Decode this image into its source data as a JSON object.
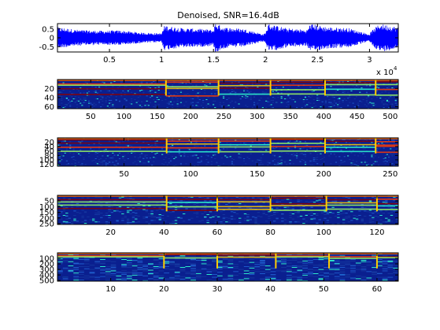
{
  "colors": {
    "background": "#ffffff",
    "axis": "#000000",
    "waveform": "#0000ff",
    "spectrogram_low": "#0a1f8f",
    "spectrogram_mid": "#30ffd0",
    "spectrogram_high": "#ffcc00",
    "spectrogram_peak": "#8b0000"
  },
  "chart_data": [
    {
      "type": "line",
      "title": "Denoised, SNR=16.4dB",
      "xlabel": "",
      "ylabel": "",
      "x_exponent_label": "x 10",
      "x_exponent_power": "4",
      "xlim": [
        0,
        32768
      ],
      "ylim": [
        -0.8,
        0.8
      ],
      "x_ticks": [
        5000,
        10000,
        15000,
        20000,
        25000,
        30000
      ],
      "x_tick_labels": [
        "0.5",
        "1",
        "1.5",
        "2",
        "2.5",
        "3"
      ],
      "y_ticks": [
        0.5,
        0,
        -0.5
      ],
      "y_tick_labels": [
        "0.5",
        "0",
        "-0.5"
      ],
      "series": [
        {
          "envelope_x": [
            0,
            2000,
            4000,
            6000,
            8000,
            10000,
            10300,
            12000,
            14000,
            15000,
            15200,
            16000,
            18000,
            19800,
            20000,
            20300,
            22000,
            24000,
            24300,
            26000,
            28000,
            30000,
            30200,
            31000,
            32768
          ],
          "envelope_amplitude": [
            0.6,
            0.45,
            0.4,
            0.42,
            0.3,
            0.25,
            0.7,
            0.55,
            0.5,
            0.45,
            0.85,
            0.6,
            0.5,
            0.2,
            0.3,
            0.8,
            0.55,
            0.45,
            0.8,
            0.6,
            0.55,
            0.2,
            0.4,
            0.8,
            0.6
          ]
        }
      ]
    },
    {
      "type": "heatmap",
      "columns": 512,
      "rows": 64,
      "xlim": [
        0,
        512
      ],
      "ylim": [
        64,
        1
      ],
      "x_ticks": [
        50,
        100,
        150,
        200,
        250,
        300,
        350,
        400,
        450,
        500
      ],
      "x_tick_labels": [
        "50",
        "100",
        "150",
        "200",
        "250",
        "300",
        "350",
        "400",
        "450",
        "500"
      ],
      "y_ticks": [
        20,
        40,
        60
      ],
      "y_tick_labels": [
        "20",
        "40",
        "60"
      ],
      "event_onsets": [
        163,
        242,
        320,
        402,
        478
      ],
      "band_rows": [
        6,
        12,
        20,
        32
      ],
      "colormap": "jet"
    },
    {
      "type": "heatmap",
      "columns": 256,
      "rows": 128,
      "xlim": [
        0,
        256
      ],
      "ylim": [
        128,
        1
      ],
      "x_ticks": [
        50,
        100,
        150,
        200,
        250
      ],
      "x_tick_labels": [
        "50",
        "100",
        "150",
        "200",
        "250"
      ],
      "y_ticks": [
        20,
        40,
        60,
        80,
        100,
        120
      ],
      "y_tick_labels": [
        "20",
        "40",
        "60",
        "80",
        "100",
        "120"
      ],
      "event_onsets": [
        82,
        121,
        160,
        201,
        239
      ],
      "band_rows": [
        10,
        25,
        40,
        60
      ],
      "colormap": "jet"
    },
    {
      "type": "heatmap",
      "columns": 128,
      "rows": 256,
      "xlim": [
        0,
        128
      ],
      "ylim": [
        256,
        1
      ],
      "x_ticks": [
        20,
        40,
        60,
        80,
        100,
        120
      ],
      "x_tick_labels": [
        "20",
        "40",
        "60",
        "80",
        "100",
        "120"
      ],
      "y_ticks": [
        50,
        100,
        150,
        200,
        250
      ],
      "y_tick_labels": [
        "50",
        "100",
        "150",
        "200",
        "250"
      ],
      "event_onsets": [
        41,
        60,
        80,
        101,
        120
      ],
      "band_rows": [
        30,
        60,
        90,
        120
      ],
      "colormap": "jet"
    },
    {
      "type": "heatmap",
      "columns": 64,
      "rows": 512,
      "xlim": [
        0,
        64
      ],
      "ylim": [
        512,
        1
      ],
      "x_ticks": [
        10,
        20,
        30,
        40,
        50,
        60
      ],
      "x_tick_labels": [
        "10",
        "20",
        "30",
        "40",
        "50",
        "60"
      ],
      "y_ticks": [
        100,
        200,
        300,
        400,
        500
      ],
      "y_tick_labels": [
        "100",
        "200",
        "300",
        "400",
        "500"
      ],
      "event_onsets": [
        20,
        30,
        41,
        51,
        60
      ],
      "band_rows": [
        40,
        80
      ],
      "colormap": "jet"
    }
  ]
}
